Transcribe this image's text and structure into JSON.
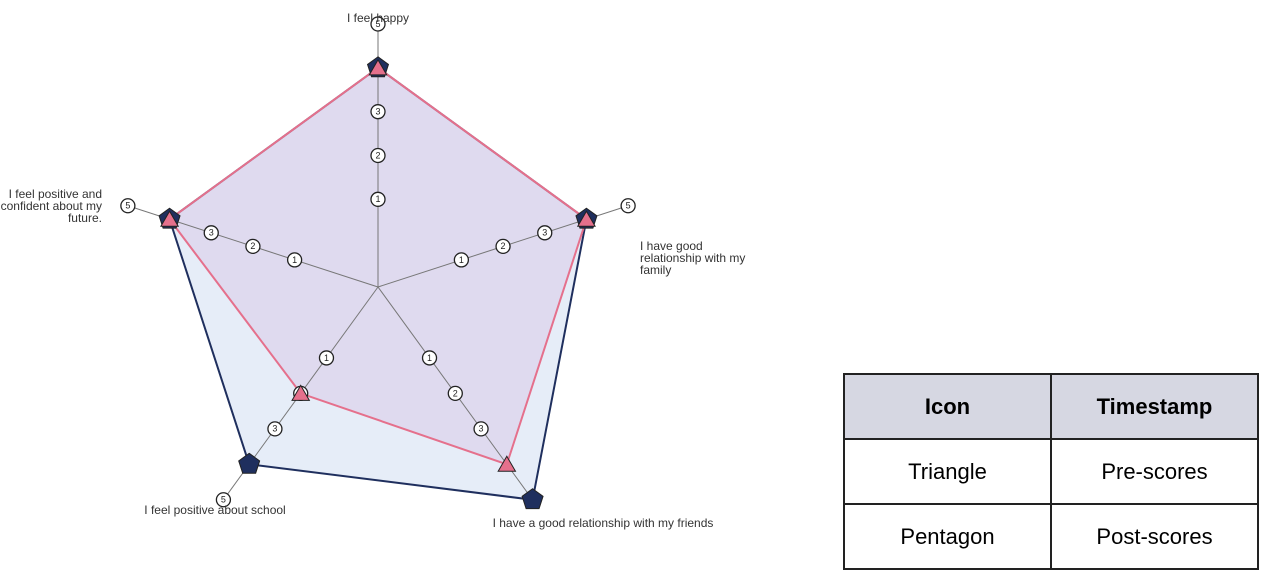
{
  "chart_data": {
    "type": "radar",
    "categories": [
      "I feel happy",
      "I have good relationship with my family",
      "I have a good relationship with my friends",
      "I feel positive about school",
      "I feel positive and confident about my future."
    ],
    "rlim": [
      -1,
      5
    ],
    "rticks": [
      1,
      2,
      3,
      5
    ],
    "legend_headers": [
      "Icon",
      "Timestamp"
    ],
    "series": [
      {
        "name": "Pre-scores",
        "icon": "Triangle",
        "color": "#e5708c",
        "values": [
          4,
          4,
          4,
          2,
          4
        ]
      },
      {
        "name": "Post-scores",
        "icon": "Pentagon",
        "color": "#1f2f5e",
        "values": [
          4,
          4,
          5,
          4,
          4
        ]
      }
    ]
  }
}
